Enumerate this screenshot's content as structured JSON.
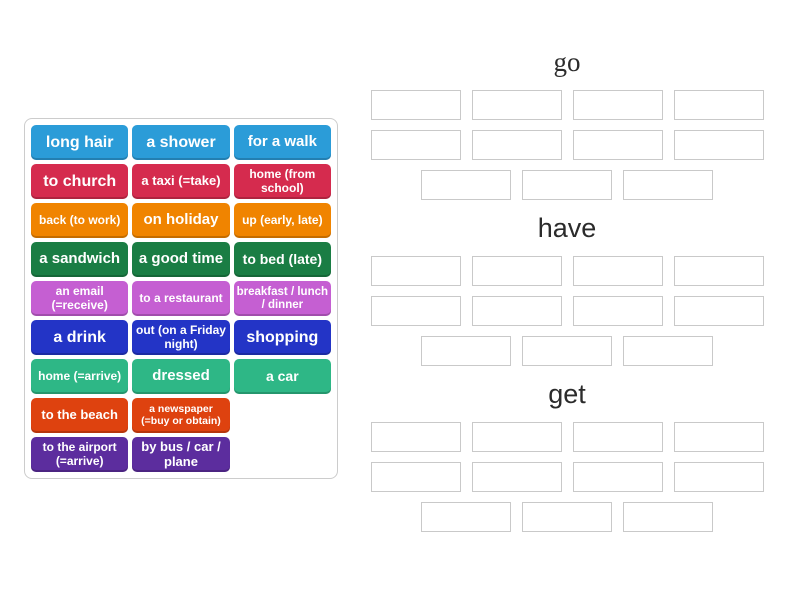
{
  "colors": {
    "background": "#ffffff",
    "tile_text": "#ffffff",
    "panel_border": "#cccccc",
    "slot_border": "#c9c9c9",
    "header_text": "#2b2b2b",
    "palette": {
      "blue": "#2b9cd8",
      "crimson": "#d52b4e",
      "orange": "#f08400",
      "green": "#1a7d44",
      "orchid": "#c55fd2",
      "indigo": "#2334c6",
      "emerald": "#2eb786",
      "vermilion": "#de420f",
      "purple": "#5c2d9e"
    }
  },
  "groups": [
    {
      "title": "go",
      "slot_rows": [
        4,
        4,
        3
      ]
    },
    {
      "title": "have",
      "slot_rows": [
        4,
        4,
        3
      ]
    },
    {
      "title": "get",
      "slot_rows": [
        4,
        4,
        3
      ]
    }
  ],
  "tiles": [
    {
      "label": "long hair",
      "color": "#2b9cd8"
    },
    {
      "label": "a shower",
      "color": "#2b9cd8"
    },
    {
      "label": "for a walk",
      "color": "#2b9cd8"
    },
    {
      "label": "to church",
      "color": "#d52b4e"
    },
    {
      "label": "a taxi (=take)",
      "color": "#d52b4e"
    },
    {
      "label": "home (from school)",
      "color": "#d52b4e"
    },
    {
      "label": "back (to work)",
      "color": "#f08400"
    },
    {
      "label": "on holiday",
      "color": "#f08400"
    },
    {
      "label": "up (early, late)",
      "color": "#f08400"
    },
    {
      "label": "a sandwich",
      "color": "#1a7d44"
    },
    {
      "label": "a good time",
      "color": "#1a7d44"
    },
    {
      "label": "to bed (late)",
      "color": "#1a7d44"
    },
    {
      "label": "an email (=receive)",
      "color": "#c55fd2"
    },
    {
      "label": "to a restaurant",
      "color": "#c55fd2"
    },
    {
      "label": "breakfast / lunch / dinner",
      "color": "#c55fd2"
    },
    {
      "label": "a drink",
      "color": "#2334c6"
    },
    {
      "label": "out (on a Friday night)",
      "color": "#2334c6"
    },
    {
      "label": "shopping",
      "color": "#2334c6"
    },
    {
      "label": "home (=arrive)",
      "color": "#2eb786"
    },
    {
      "label": "dressed",
      "color": "#2eb786"
    },
    {
      "label": "a car",
      "color": "#2eb786"
    },
    {
      "label": "to the beach",
      "color": "#de420f"
    },
    {
      "label": "a newspaper (=buy or obtain)",
      "color": "#de420f"
    },
    {
      "label": "to the airport (=arrive)",
      "color": "#5c2d9e"
    },
    {
      "label": "by bus / car / plane",
      "color": "#5c2d9e"
    }
  ]
}
